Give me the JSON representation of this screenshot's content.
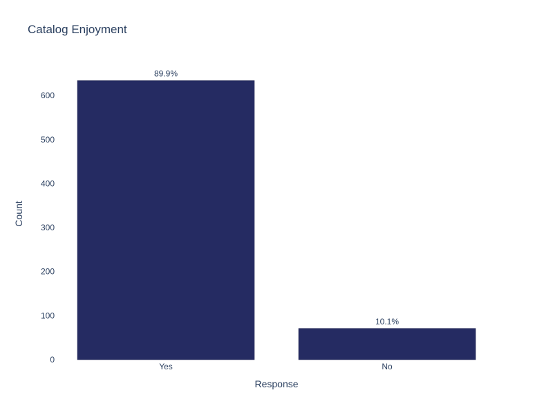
{
  "chart_data": {
    "type": "bar",
    "title": "Catalog Enjoyment",
    "xlabel": "Response",
    "ylabel": "Count",
    "categories": [
      "Yes",
      "No"
    ],
    "values": [
      634,
      71
    ],
    "data_labels": [
      "89.9%",
      "10.1%"
    ],
    "ylim": [
      0,
      660
    ],
    "yticks": [
      0,
      100,
      200,
      300,
      400,
      500,
      600
    ],
    "bar_color": "#252b62",
    "grid": false,
    "legend": "none"
  }
}
